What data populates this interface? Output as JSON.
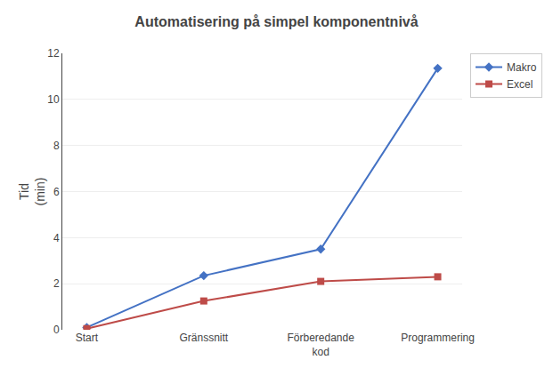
{
  "chart_data": {
    "type": "line",
    "title": "Automatisering på simpel komponentnivå",
    "y_label": "Tid\n(min)",
    "categories": [
      "Start",
      "Gränssnitt",
      "Förberedande\nkod",
      "Programmering"
    ],
    "series": [
      {
        "name": "Makro",
        "color": "#4472C4",
        "marker": "diamond",
        "values": [
          0.1,
          2.35,
          3.5,
          11.35
        ]
      },
      {
        "name": "Excel",
        "color": "#BE4B48",
        "marker": "square",
        "values": [
          0.05,
          1.25,
          2.1,
          2.3
        ]
      }
    ],
    "ylim": [
      0,
      12
    ],
    "yticks": [
      0,
      2,
      4,
      6,
      8,
      10,
      12
    ],
    "grid": true,
    "legend": "right"
  }
}
